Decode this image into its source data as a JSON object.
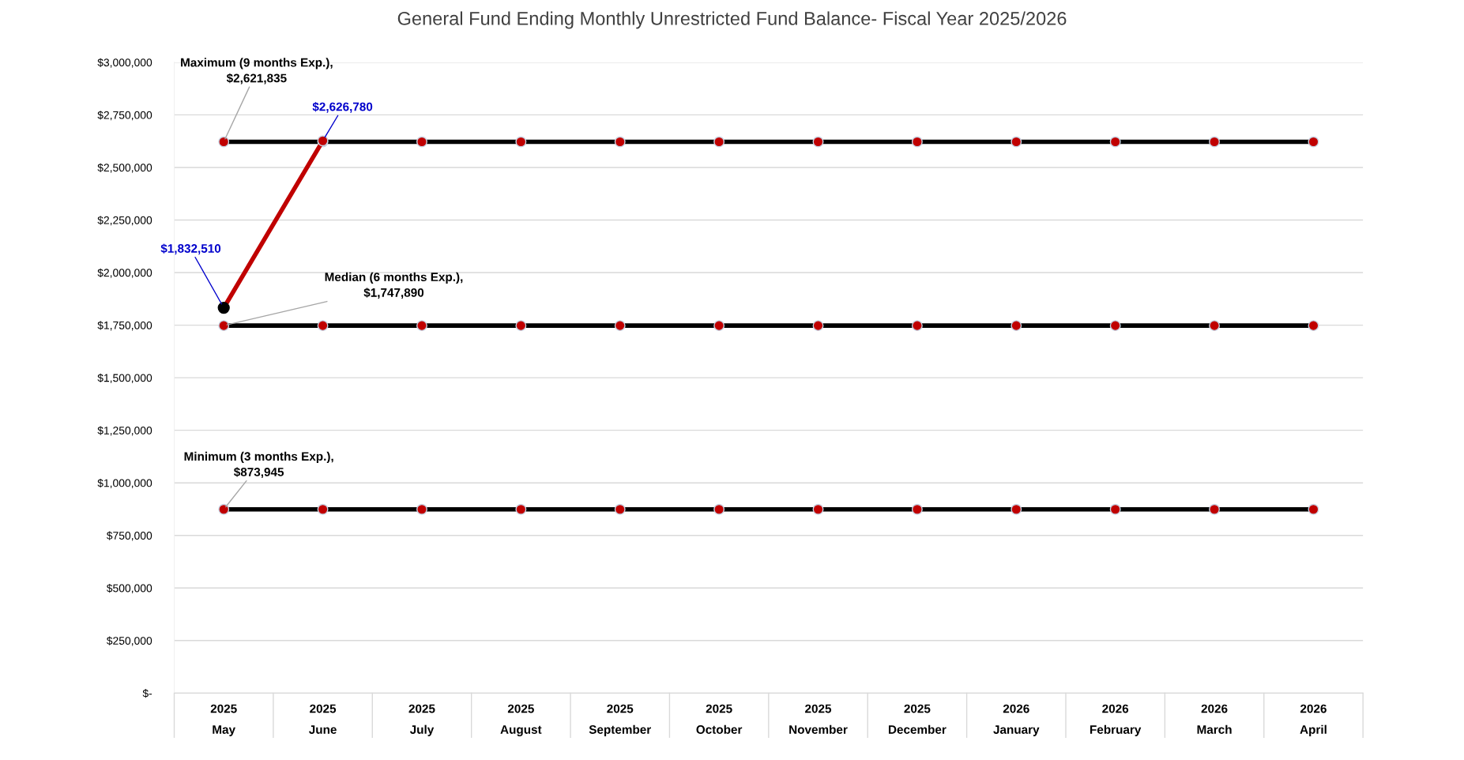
{
  "chart_data": {
    "type": "line",
    "title": "General Fund Ending Monthly Unrestricted Fund Balance- Fiscal Year 2025/2026",
    "categories": [
      "2025\nMay",
      "2025\nJune",
      "2025\nJuly",
      "2025\nAugust",
      "2025\nSeptember",
      "2025\nOctober",
      "2025\nNovember",
      "2025\nDecember",
      "2026\nJanuary",
      "2026\nFebruary",
      "2026\nMarch",
      "2026\nApril"
    ],
    "series": [
      {
        "color": "#000000",
        "colors": [
          "#c00000",
          "#c00000",
          "#c00000",
          "#c00000",
          "#c00000",
          "#c00000",
          "#c00000",
          "#c00000",
          "#c00000",
          "#c00000",
          "#c00000",
          "#c00000"
        ],
        "values": [
          2621835,
          2621835,
          2621835,
          2621835,
          2621835,
          2621835,
          2621835,
          2621835,
          2621835,
          2621835,
          2621835,
          2621835
        ]
      },
      {
        "color": "#000000",
        "colors": [
          "#c00000",
          "#c00000",
          "#c00000",
          "#c00000",
          "#c00000",
          "#c00000",
          "#c00000",
          "#c00000",
          "#c00000",
          "#c00000",
          "#c00000",
          "#c00000"
        ],
        "values": [
          1747890,
          1747890,
          1747890,
          1747890,
          1747890,
          1747890,
          1747890,
          1747890,
          1747890,
          1747890,
          1747890,
          1747890
        ]
      },
      {
        "color": "#000000",
        "colors": [
          "#c00000",
          "#c00000",
          "#c00000",
          "#c00000",
          "#c00000",
          "#c00000",
          "#c00000",
          "#c00000",
          "#c00000",
          "#c00000",
          "#c00000",
          "#c00000"
        ],
        "values": [
          873945,
          873945,
          873945,
          873945,
          873945,
          873945,
          873945,
          873945,
          873945,
          873945,
          873945,
          873945
        ]
      },
      {
        "color": "#c00000",
        "colors": [
          "#000000",
          "#c00000",
          null,
          null,
          null,
          null,
          null,
          null,
          null,
          null,
          null,
          null
        ],
        "values": [
          1832510,
          2626780,
          null,
          null,
          null,
          null,
          null,
          null,
          null,
          null,
          null,
          null
        ],
        "value_labels": [
          "$1,832,510",
          "$2,626,780",
          null,
          null,
          null,
          null,
          null,
          null,
          null,
          null,
          null,
          null
        ]
      }
    ],
    "annotations": [
      {
        "text": "Maximum (9 months Exp.),\n$2,621,835",
        "x": "2025\nMay",
        "y": 2621835
      },
      {
        "text": "Median (6 months Exp.),\n$1,747,890",
        "x": "2025\nMay",
        "y": 1747890
      },
      {
        "text": "Minimum (3 months Exp.),\n$873,945",
        "x": "2025\nMay",
        "y": 873945
      }
    ],
    "ylim": [
      0,
      3000000
    ],
    "yticks": [
      {
        "value": 0,
        "label": "$-"
      },
      {
        "value": 250000,
        "label": "$250,000"
      },
      {
        "value": 500000,
        "label": "$500,000"
      },
      {
        "value": 750000,
        "label": "$750,000"
      },
      {
        "value": 1000000,
        "label": "$1,000,000"
      },
      {
        "value": 1250000,
        "label": "$1,250,000"
      },
      {
        "value": 1500000,
        "label": "$1,500,000"
      },
      {
        "value": 1750000,
        "label": "$1,750,000"
      },
      {
        "value": 2000000,
        "label": "$2,000,000"
      },
      {
        "value": 2250000,
        "label": "$2,250,000"
      },
      {
        "value": 2500000,
        "label": "$2,500,000"
      },
      {
        "value": 2750000,
        "label": "$2,750,000"
      },
      {
        "value": 3000000,
        "label": "$3,000,000"
      }
    ],
    "grid": "y",
    "marker": "circle",
    "line_style": "solid"
  }
}
